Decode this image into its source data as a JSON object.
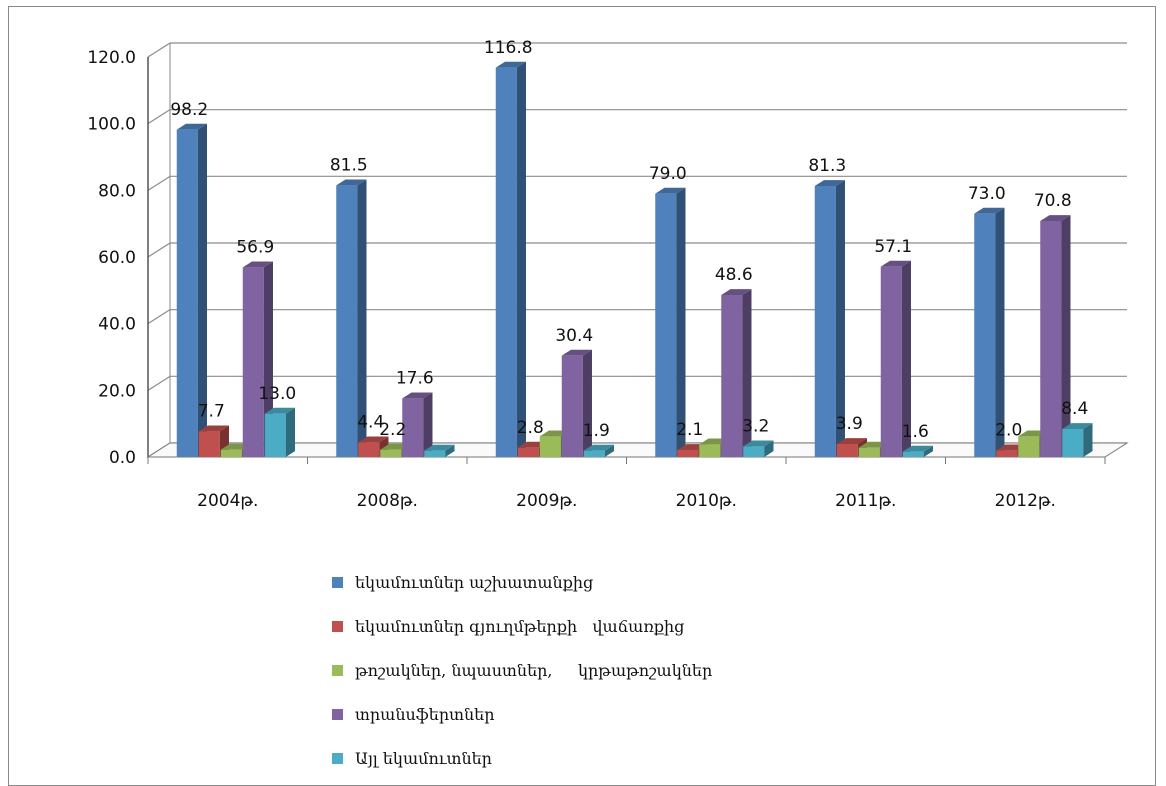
{
  "chart_data": {
    "type": "bar",
    "categories": [
      "2004թ.",
      "2008թ.",
      "2009թ.",
      "2010թ.",
      "2011թ.",
      "2012թ."
    ],
    "series": [
      {
        "name": "եկամուտներ աշխատանքից",
        "color": "#4f81bd",
        "values": [
          98.2,
          81.5,
          116.8,
          79.0,
          81.3,
          73.0
        ],
        "labels": [
          "98.2",
          "81.5",
          "116.8",
          "79.0",
          "81.3",
          "73.0"
        ]
      },
      {
        "name": "եկամուտներ գյուղմթերքի   վաճառքից",
        "color": "#c0504d",
        "values": [
          7.7,
          4.4,
          2.8,
          2.1,
          3.9,
          2.0
        ],
        "labels": [
          "7.7",
          "4.4",
          "2.8",
          "2.1",
          "3.9",
          "2.0"
        ]
      },
      {
        "name": "թոշակներ, նպաստներ,     կրթաթոշակներ",
        "color": "#9bbb59",
        "values": [
          2.2,
          2.2,
          6.2,
          3.8,
          2.8,
          6.2
        ],
        "labels": [
          "",
          "2.2",
          "",
          "",
          "",
          ""
        ]
      },
      {
        "name": "տրանսֆերտներ",
        "color": "#8064a2",
        "values": [
          56.9,
          17.6,
          30.4,
          48.6,
          57.1,
          70.8
        ],
        "labels": [
          "56.9",
          "17.6",
          "30.4",
          "48.6",
          "57.1",
          "70.8"
        ]
      },
      {
        "name": "Այլ եկամուտներ",
        "color": "#4bacc6",
        "values": [
          13.0,
          1.9,
          1.9,
          3.2,
          1.6,
          8.4
        ],
        "labels": [
          "13.0",
          "",
          "1.9",
          "3.2",
          "1.6",
          "8.4"
        ]
      }
    ],
    "y_ticks": [
      "0.0",
      "20.0",
      "40.0",
      "60.0",
      "80.0",
      "100.0",
      "120.0"
    ],
    "ylim": [
      0,
      120
    ],
    "grid": true,
    "legend_position": "bottom",
    "three_d": true
  }
}
